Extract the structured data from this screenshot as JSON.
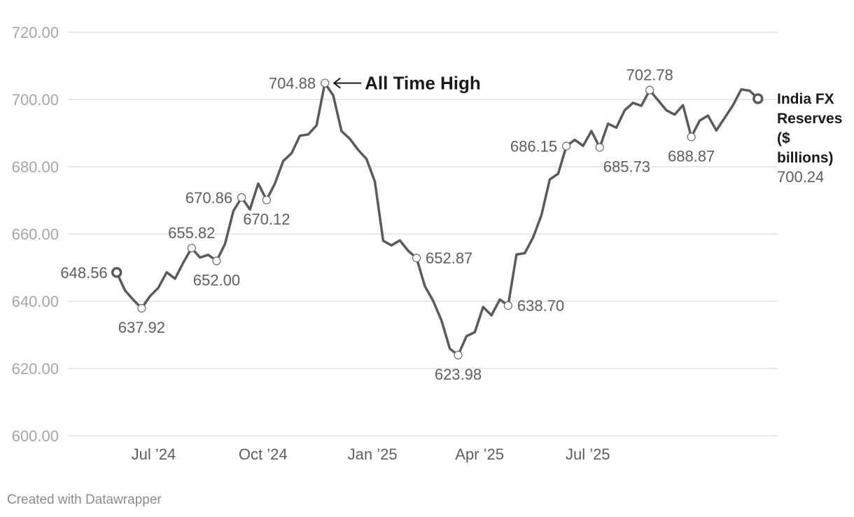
{
  "chart_data": {
    "type": "line",
    "series": [
      {
        "name": "India FX Reserves ($ billions)",
        "last_value_label": "700.24",
        "color": "#5a5a5a",
        "points": [
          [
            "2024-05-31",
            648.56
          ],
          [
            "2024-06-07",
            643.2
          ],
          [
            "2024-06-14",
            640.4
          ],
          [
            "2024-06-21",
            637.92
          ],
          [
            "2024-06-28",
            641.5
          ],
          [
            "2024-07-05",
            644.0
          ],
          [
            "2024-07-12",
            648.6
          ],
          [
            "2024-07-19",
            646.7
          ],
          [
            "2024-07-26",
            651.5
          ],
          [
            "2024-08-02",
            655.82
          ],
          [
            "2024-08-09",
            653.0
          ],
          [
            "2024-08-16",
            653.8
          ],
          [
            "2024-08-23",
            652.0
          ],
          [
            "2024-08-30",
            657.0
          ],
          [
            "2024-09-06",
            666.8
          ],
          [
            "2024-09-13",
            670.86
          ],
          [
            "2024-09-20",
            667.3
          ],
          [
            "2024-09-27",
            675.0
          ],
          [
            "2024-10-04",
            670.12
          ],
          [
            "2024-10-11",
            675.0
          ],
          [
            "2024-10-18",
            681.7
          ],
          [
            "2024-10-25",
            684.0
          ],
          [
            "2024-11-01",
            689.2
          ],
          [
            "2024-11-08",
            689.6
          ],
          [
            "2024-11-15",
            692.3
          ],
          [
            "2024-11-22",
            704.88
          ],
          [
            "2024-11-29",
            701.2
          ],
          [
            "2024-12-06",
            690.6
          ],
          [
            "2024-12-13",
            688.3
          ],
          [
            "2024-12-20",
            685.0
          ],
          [
            "2024-12-27",
            682.3
          ],
          [
            "2025-01-03",
            675.6
          ],
          [
            "2025-01-10",
            658.0
          ],
          [
            "2025-01-17",
            656.6
          ],
          [
            "2025-01-24",
            658.1
          ],
          [
            "2025-01-31",
            655.0
          ],
          [
            "2025-02-07",
            652.87
          ],
          [
            "2025-02-14",
            644.5
          ],
          [
            "2025-02-21",
            640.1
          ],
          [
            "2025-02-28",
            634.3
          ],
          [
            "2025-03-07",
            625.9
          ],
          [
            "2025-03-14",
            623.98
          ],
          [
            "2025-03-21",
            629.6
          ],
          [
            "2025-03-28",
            630.8
          ],
          [
            "2025-04-04",
            638.3
          ],
          [
            "2025-04-11",
            635.8
          ],
          [
            "2025-04-18",
            640.5
          ],
          [
            "2025-04-25",
            638.7
          ],
          [
            "2025-05-02",
            653.9
          ],
          [
            "2025-05-09",
            654.3
          ],
          [
            "2025-05-16",
            659.0
          ],
          [
            "2025-05-23",
            665.6
          ],
          [
            "2025-05-30",
            676.2
          ],
          [
            "2025-06-06",
            677.9
          ],
          [
            "2025-06-13",
            686.15
          ],
          [
            "2025-06-20",
            688.0
          ],
          [
            "2025-06-27",
            686.2
          ],
          [
            "2025-07-04",
            690.6
          ],
          [
            "2025-07-11",
            685.73
          ],
          [
            "2025-07-18",
            692.8
          ],
          [
            "2025-07-25",
            691.6
          ],
          [
            "2025-08-01",
            696.8
          ],
          [
            "2025-08-08",
            699.0
          ],
          [
            "2025-08-15",
            698.1
          ],
          [
            "2025-08-22",
            702.78
          ],
          [
            "2025-08-29",
            699.8
          ],
          [
            "2025-09-05",
            696.8
          ],
          [
            "2025-09-12",
            695.5
          ],
          [
            "2025-09-19",
            698.3
          ],
          [
            "2025-09-26",
            688.87
          ],
          [
            "2025-10-03",
            693.7
          ],
          [
            "2025-10-10",
            695.2
          ],
          [
            "2025-10-17",
            690.8
          ],
          [
            "2025-10-24",
            694.5
          ],
          [
            "2025-10-31",
            698.3
          ],
          [
            "2025-11-07",
            703.0
          ],
          [
            "2025-11-14",
            702.6
          ],
          [
            "2025-11-21",
            700.24
          ]
        ]
      }
    ],
    "yticks": [
      "600.00",
      "620.00",
      "640.00",
      "660.00",
      "680.00",
      "700.00",
      "720.00"
    ],
    "ylim": [
      600,
      720
    ],
    "xticks": [
      {
        "date": "2024-07-01",
        "label": "Jul ’24"
      },
      {
        "date": "2024-10-01",
        "label": "Oct ’24"
      },
      {
        "date": "2025-01-01",
        "label": "Jan ’25"
      },
      {
        "date": "2025-04-01",
        "label": "Apr ’25"
      },
      {
        "date": "2025-07-01",
        "label": "Jul ’25"
      }
    ],
    "xlim": [
      "2024-04-20",
      "2025-12-07"
    ],
    "grid": true,
    "data_labels": [
      {
        "date": "2024-05-31",
        "label": "648.56",
        "pos": "left",
        "marker": "start"
      },
      {
        "date": "2024-06-21",
        "label": "637.92",
        "pos": "below"
      },
      {
        "date": "2024-08-02",
        "label": "655.82",
        "pos": "above"
      },
      {
        "date": "2024-08-23",
        "label": "652.00",
        "pos": "below"
      },
      {
        "date": "2024-09-13",
        "label": "670.86",
        "pos": "left"
      },
      {
        "date": "2024-10-04",
        "label": "670.12",
        "pos": "below"
      },
      {
        "date": "2024-11-22",
        "label": "704.88",
        "pos": "left"
      },
      {
        "date": "2025-02-07",
        "label": "652.87",
        "pos": "right"
      },
      {
        "date": "2025-03-14",
        "label": "623.98",
        "pos": "below"
      },
      {
        "date": "2025-04-25",
        "label": "638.70",
        "pos": "right"
      },
      {
        "date": "2025-06-13",
        "label": "686.15",
        "pos": "left"
      },
      {
        "date": "2025-07-11",
        "label": "685.73",
        "pos": "below-right"
      },
      {
        "date": "2025-08-22",
        "label": "702.78",
        "pos": "above"
      },
      {
        "date": "2025-09-26",
        "label": "688.87",
        "pos": "below"
      }
    ],
    "annotations": [
      {
        "text": "All Time High",
        "date": "2024-11-22",
        "value": 704.88
      }
    ]
  },
  "footer": "Created with Datawrapper",
  "colors": {
    "line": "#5a5a5a",
    "grid": "#e0e0e0",
    "axis_text": "#a6a6a6"
  }
}
